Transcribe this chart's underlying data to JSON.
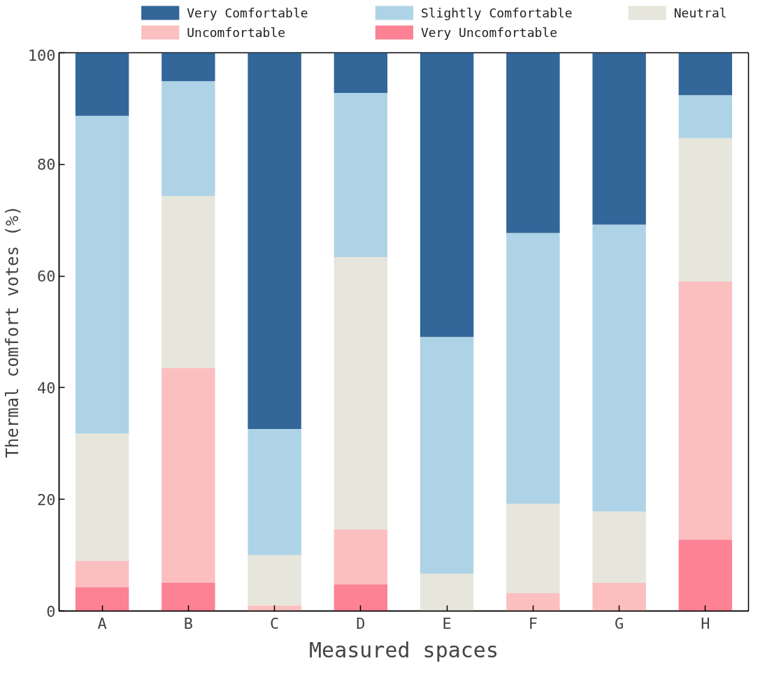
{
  "chart_data": {
    "type": "bar",
    "stacked": true,
    "xlabel": "Measured spaces",
    "ylabel": "Thermal comfort votes (%)",
    "categories": [
      "A",
      "B",
      "C",
      "D",
      "E",
      "F",
      "G",
      "H"
    ],
    "series": [
      {
        "name": "Very Uncomfortable",
        "color": "#fc8294",
        "values": [
          4.3,
          5.1,
          0,
          4.8,
          0,
          0,
          0,
          12.8
        ]
      },
      {
        "name": "Uncomfortable",
        "color": "#fbbfc0",
        "values": [
          4.7,
          38.4,
          1.0,
          9.8,
          0,
          3.2,
          5.1,
          46.2
        ]
      },
      {
        "name": "Neutral",
        "color": "#e6e6dc",
        "values": [
          22.8,
          30.8,
          9.0,
          48.8,
          6.7,
          16.0,
          12.7,
          25.7
        ]
      },
      {
        "name": "Slightly Comfortable",
        "color": "#afd3e6",
        "values": [
          56.9,
          20.6,
          22.6,
          29.4,
          42.4,
          48.5,
          51.4,
          7.7
        ]
      },
      {
        "name": "Very Comfortable",
        "color": "#336699",
        "values": [
          11.3,
          5.1,
          67.4,
          7.2,
          50.9,
          32.3,
          30.8,
          7.6
        ]
      }
    ],
    "ylim": [
      0,
      100
    ],
    "yticks": [
      0,
      20,
      40,
      60,
      80,
      100
    ],
    "grid": false,
    "legend": "top"
  }
}
